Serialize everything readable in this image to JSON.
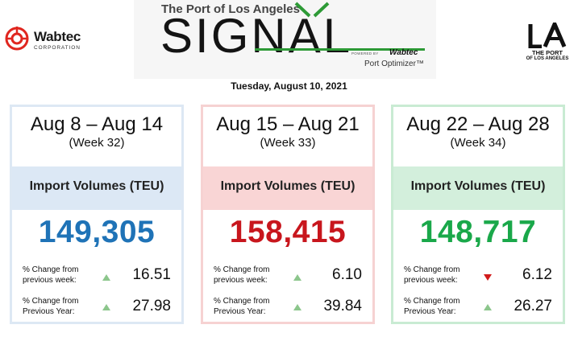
{
  "header": {
    "left_logo": {
      "name": "Wabtec",
      "subtitle": "CORPORATION"
    },
    "title_top": "The Port of Los Angeles",
    "signal_word": "SIGNAL",
    "powered_by": "POWERED BY",
    "powered_brand": "Wabtec",
    "product": "Port Optimizer™",
    "right_logo": {
      "mark": "LA",
      "line1": "THE PORT",
      "line2": "OF LOS ANGELES"
    }
  },
  "report_date": "Tuesday, August 10, 2021",
  "cards": [
    {
      "range": "Aug 8 – Aug 14",
      "week": "(Week 32)",
      "metric": "Import Volumes (TEU)",
      "value": "149,305",
      "stats": [
        {
          "label_line1": "% Change from",
          "label_line2": "previous week:",
          "direction": "up",
          "value": "16.51"
        },
        {
          "label_line1": "% Change from",
          "label_line2": "Previous Year:",
          "direction": "up",
          "value": "27.98"
        }
      ]
    },
    {
      "range": "Aug 15 – Aug 21",
      "week": "(Week 33)",
      "metric": "Import Volumes (TEU)",
      "value": "158,415",
      "stats": [
        {
          "label_line1": "% Change from",
          "label_line2": "previous week:",
          "direction": "up",
          "value": "6.10"
        },
        {
          "label_line1": "% Change from",
          "label_line2": "Previous Year:",
          "direction": "up",
          "value": "39.84"
        }
      ]
    },
    {
      "range": "Aug 22 – Aug 28",
      "week": "(Week 34)",
      "metric": "Import Volumes (TEU)",
      "value": "148,717",
      "stats": [
        {
          "label_line1": "% Change from",
          "label_line2": "previous week:",
          "direction": "down",
          "value": "6.12"
        },
        {
          "label_line1": "% Change from",
          "label_line2": "Previous Year:",
          "direction": "up",
          "value": "26.27"
        }
      ]
    }
  ],
  "theme": {
    "card_styles": [
      {
        "border": "#dde8f4",
        "band": "#dce8f5",
        "value_color": "#1f73b7"
      },
      {
        "border": "#f6d2d2",
        "band": "#f9d5d5",
        "value_color": "#c8161d"
      },
      {
        "border": "#c9ebd3",
        "band": "#d3efdc",
        "value_color": "#1aa84a"
      }
    ],
    "icons": {
      "up": "triangle-up-icon",
      "down": "triangle-down-icon"
    }
  }
}
